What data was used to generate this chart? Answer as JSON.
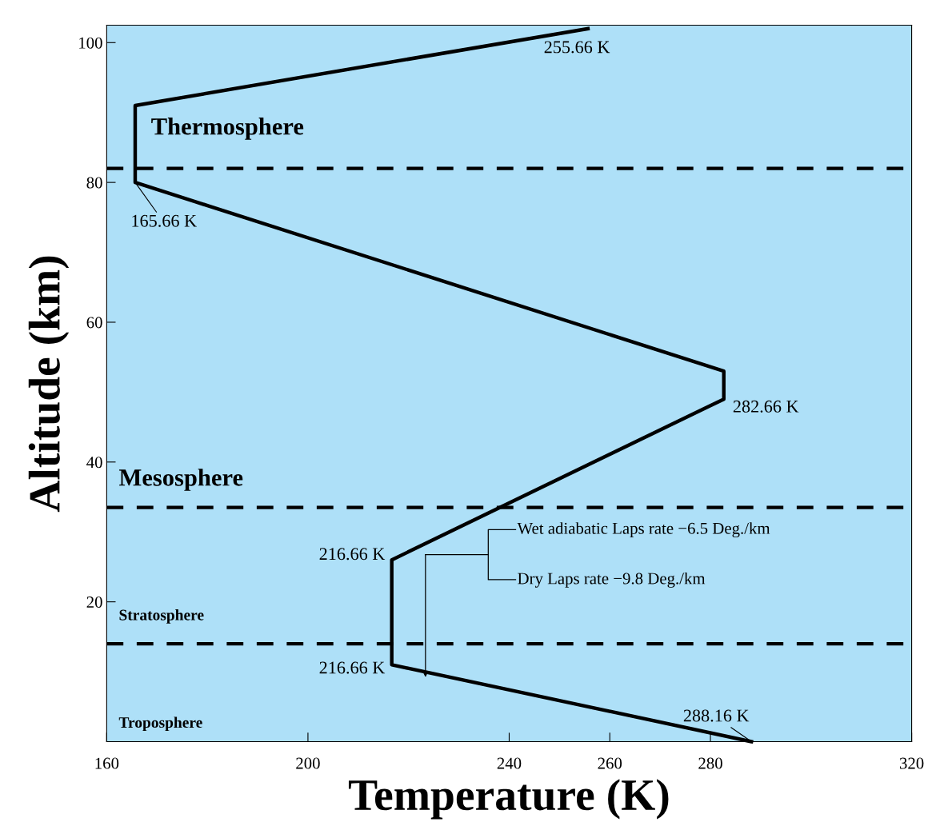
{
  "chart_data": {
    "type": "line",
    "xlabel": "Temperature (K)",
    "ylabel": "Altitude (km)",
    "series": [
      {
        "color": "#000000",
        "x": [
          288.16,
          216.66,
          216.66,
          282.66,
          282.66,
          165.66,
          165.66,
          255.66
        ],
        "values": [
          0,
          11,
          26,
          49,
          53,
          80,
          91,
          102
        ]
      }
    ],
    "xlim": [
      160,
      320
    ],
    "xticks": [
      160,
      200,
      240,
      260,
      280,
      320
    ],
    "ylim": [
      0,
      102.5
    ],
    "yticks": [
      20,
      40,
      60,
      80,
      100
    ],
    "grid": false,
    "legend": false,
    "marker": "none",
    "line_style": "solid",
    "ref_lines": [
      {
        "axis": "y",
        "value": 82,
        "color": "#000000",
        "line_style": "dashed"
      },
      {
        "axis": "y",
        "value": 33.5,
        "color": "#000000",
        "line_style": "dashed"
      },
      {
        "axis": "y",
        "value": 14,
        "color": "#000000",
        "line_style": "dashed"
      }
    ],
    "annotations": [
      {
        "text": "288.16 K",
        "x": 288.16,
        "y": 0
      },
      {
        "text": "216.66 K",
        "x": 216.66,
        "y": 11
      },
      {
        "text": "216.66 K",
        "x": 216.66,
        "y": 26
      },
      {
        "text": "282.66 K",
        "x": 282.66,
        "y": 49
      },
      {
        "text": "165.66 K",
        "x": 165.66,
        "y": 80
      },
      {
        "text": "255.66 K",
        "x": 255.66,
        "y": 102
      },
      "Thermosphere",
      "Mesosphere",
      "Stratosphere",
      "Troposphere",
      "Wet adiabatic Laps rate −6.5 Deg./km",
      "Dry Laps rate −9.8 Deg./km"
    ]
  }
}
